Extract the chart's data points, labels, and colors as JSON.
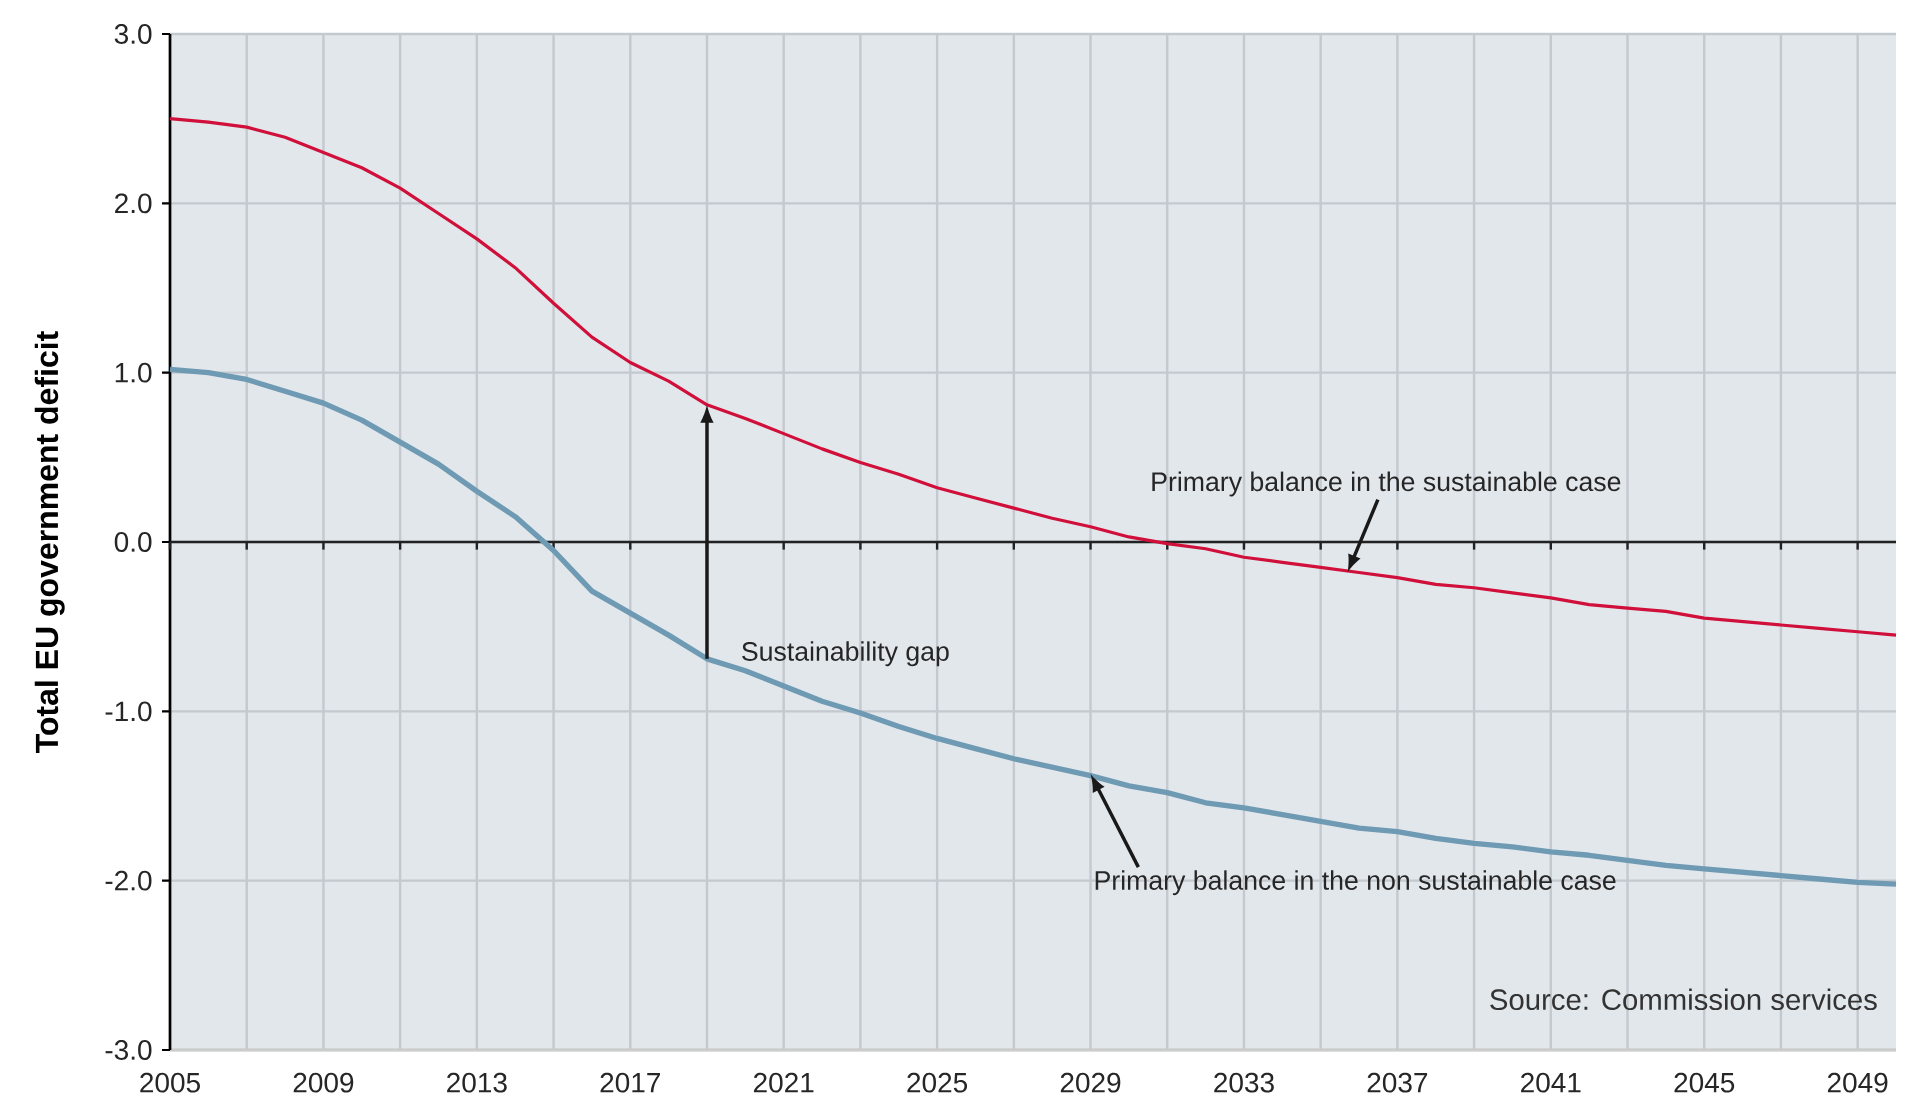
{
  "chart_data": {
    "type": "line",
    "ylabel": "Total EU government deficit",
    "x": [
      2005,
      2006,
      2007,
      2008,
      2009,
      2010,
      2011,
      2012,
      2013,
      2014,
      2015,
      2016,
      2017,
      2018,
      2019,
      2020,
      2021,
      2022,
      2023,
      2024,
      2025,
      2026,
      2027,
      2028,
      2029,
      2030,
      2031,
      2032,
      2033,
      2034,
      2035,
      2036,
      2037,
      2038,
      2039,
      2040,
      2041,
      2042,
      2043,
      2044,
      2045,
      2046,
      2047,
      2048,
      2049,
      2050
    ],
    "series": [
      {
        "color": "#d0103a",
        "values": [
          2.5,
          2.48,
          2.45,
          2.39,
          2.3,
          2.21,
          2.09,
          1.94,
          1.79,
          1.62,
          1.41,
          1.21,
          1.06,
          0.95,
          0.81,
          0.73,
          0.64,
          0.55,
          0.47,
          0.4,
          0.32,
          0.26,
          0.2,
          0.14,
          0.09,
          0.03,
          -0.01,
          -0.04,
          -0.09,
          -0.12,
          -0.15,
          -0.18,
          -0.21,
          -0.25,
          -0.27,
          -0.3,
          -0.33,
          -0.37,
          -0.39,
          -0.41,
          -0.45,
          -0.47,
          -0.49,
          -0.51,
          -0.53,
          -0.55
        ]
      },
      {
        "color": "#6f9ab3",
        "values": [
          1.02,
          1.0,
          0.96,
          0.89,
          0.82,
          0.72,
          0.59,
          0.46,
          0.3,
          0.15,
          -0.05,
          -0.29,
          -0.42,
          -0.55,
          -0.69,
          -0.76,
          -0.85,
          -0.94,
          -1.01,
          -1.09,
          -1.16,
          -1.22,
          -1.28,
          -1.33,
          -1.38,
          -1.44,
          -1.48,
          -1.54,
          -1.57,
          -1.61,
          -1.65,
          -1.69,
          -1.71,
          -1.75,
          -1.78,
          -1.8,
          -1.83,
          -1.85,
          -1.88,
          -1.91,
          -1.93,
          -1.95,
          -1.97,
          -1.99,
          -2.01,
          -2.02
        ]
      }
    ],
    "xlim": [
      2005,
      2050
    ],
    "xticks": [
      2005,
      {
        "value": 2007,
        "label": null
      },
      2009,
      {
        "value": 2011,
        "label": null
      },
      2013,
      {
        "value": 2015,
        "label": null
      },
      2017,
      {
        "value": 2019,
        "label": null
      },
      2021,
      {
        "value": 2023,
        "label": null
      },
      2025,
      {
        "value": 2027,
        "label": null
      },
      2029,
      {
        "value": 2031,
        "label": null
      },
      2033,
      {
        "value": 2035,
        "label": null
      },
      2037,
      {
        "value": 2039,
        "label": null
      },
      2041,
      {
        "value": 2043,
        "label": null
      },
      2045,
      {
        "value": 2047,
        "label": null
      },
      2049
    ],
    "ylim": [
      -3,
      3
    ],
    "yticks": [
      {
        "value": -3,
        "label": "-3.0"
      },
      {
        "value": -2,
        "label": "-2.0"
      },
      {
        "value": -1,
        "label": "-1.0"
      },
      {
        "value": 0,
        "label": "0.0"
      },
      {
        "value": 1,
        "label": "1.0"
      },
      {
        "value": 2,
        "label": "2.0"
      },
      {
        "value": 3,
        "label": "3.0"
      }
    ],
    "grid": true,
    "legend": false,
    "marker": "none",
    "line_style": "solid",
    "ref_lines": [
      {
        "axis": "y",
        "value": 0,
        "color": "#222222"
      }
    ],
    "annotations": [
      {
        "text": "Sustainability gap",
        "x": 2019,
        "y": -0.69
      },
      {
        "text": "Primary balance in the sustainable case",
        "x": 2035.7,
        "y": -0.18
      },
      {
        "text": "Primary balance in the non sustainable case",
        "x": 2029,
        "y": -1.37
      },
      "Source: Commission services"
    ]
  }
}
